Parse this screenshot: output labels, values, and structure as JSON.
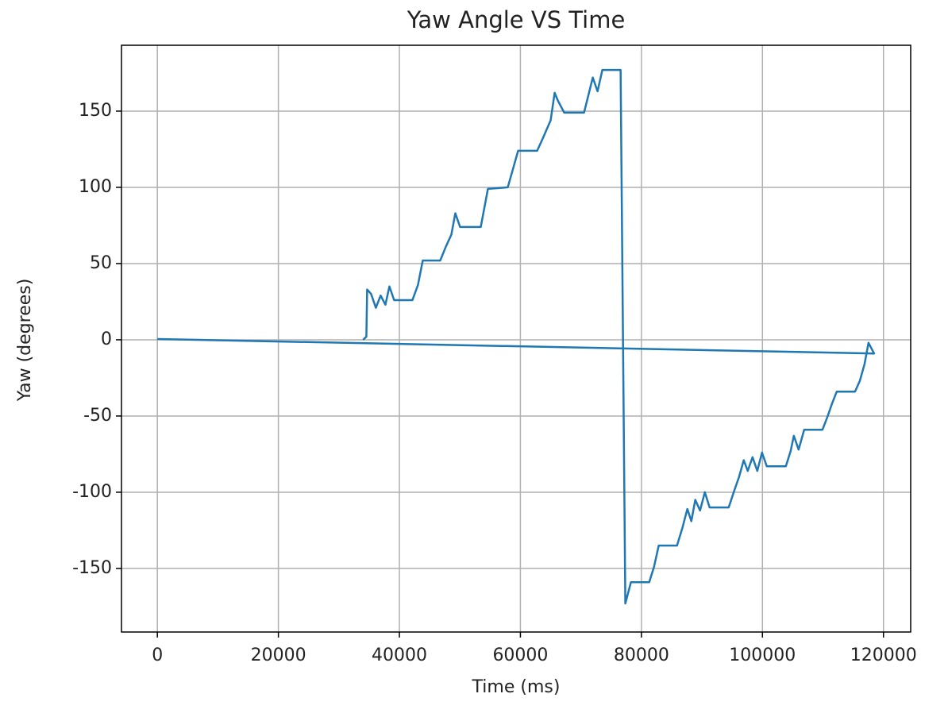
{
  "chart_data": {
    "type": "line",
    "title": "Yaw Angle VS Time",
    "x_label": "Time (ms)",
    "y_label": "Yaw (degrees)",
    "x": [
      34000,
      34540,
      34670,
      35330,
      36110,
      36900,
      37690,
      38350,
      39130,
      42150,
      43070,
      43860,
      46750,
      47670,
      48590,
      49240,
      50030,
      53450,
      54630,
      57910,
      58700,
      59620,
      62770,
      63690,
      65000,
      65660,
      66180,
      67240,
      70520,
      71960,
      72750,
      73540,
      76560,
      77340,
      78270,
      81290,
      82080,
      82860,
      85880,
      86800,
      87590,
      88250,
      88900,
      89690,
      90480,
      91270,
      94420,
      95340,
      96130,
      96910,
      97570,
      98360,
      99150,
      99930,
      100720,
      103870,
      104660,
      105190,
      105980,
      106900,
      109920,
      110700,
      111490,
      112280,
      115300,
      116090,
      116870,
      117530,
      118450,
      0
    ],
    "values": [
      0,
      2,
      33,
      30,
      21,
      29,
      23,
      35,
      26,
      26,
      36,
      52,
      52,
      61,
      69,
      83,
      74,
      74,
      99,
      100,
      111,
      124,
      124,
      132,
      144,
      162,
      157,
      149,
      149,
      172,
      163,
      177,
      177,
      -173,
      -159,
      -159,
      -149,
      -135,
      -135,
      -123,
      -111,
      -119,
      -105,
      -112,
      -100,
      -110,
      -110,
      -99,
      -90,
      -79,
      -86,
      -77,
      -86,
      -74,
      -83,
      -83,
      -73,
      -63,
      -72,
      -59,
      -59,
      -51,
      -42,
      -34,
      -34,
      -27,
      -16,
      -2,
      -9,
      0.5
    ],
    "color": "#1f77b4",
    "xlim": [
      -5930,
      124500
    ],
    "xticks": [
      0,
      20000,
      40000,
      60000,
      80000,
      100000,
      120000
    ],
    "ylim": [
      -191.7,
      193.2
    ],
    "yticks": [
      -150,
      -100,
      -50,
      0,
      50,
      100,
      150
    ],
    "grid": true
  }
}
